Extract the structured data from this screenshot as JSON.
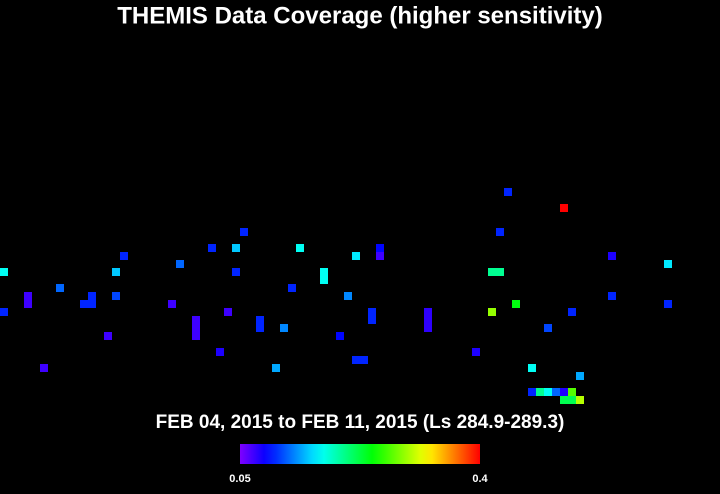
{
  "chart_data": {
    "type": "heatmap",
    "title": "THEMIS Data Coverage (higher sensitivity)",
    "subtitle": "FEB 04, 2015 to FEB 11, 2015 (Ls 284.9-289.3)",
    "x": [
      0,
      0,
      3,
      3,
      5,
      7,
      10,
      11,
      11,
      13,
      14,
      14,
      15,
      21,
      22,
      24,
      24,
      24,
      26,
      27,
      28,
      29,
      29,
      30,
      32,
      32,
      34,
      35,
      36,
      37,
      40,
      40,
      42,
      43,
      44,
      44,
      45,
      46,
      46,
      47,
      47,
      53,
      53,
      53,
      59,
      61,
      62,
      61,
      62,
      63,
      64,
      66,
      68,
      70,
      71,
      72,
      66,
      67,
      68,
      69,
      70,
      71,
      70,
      71,
      72,
      76,
      76,
      83,
      83
    ],
    "y": [
      34,
      39,
      37,
      38,
      46,
      36,
      38,
      37,
      38,
      42,
      34,
      37,
      32,
      38,
      33,
      40,
      41,
      42,
      31,
      44,
      39,
      31,
      34,
      29,
      40,
      41,
      46,
      41,
      36,
      31,
      34,
      35,
      42,
      37,
      32,
      45,
      45,
      39,
      40,
      31,
      32,
      39,
      40,
      41,
      44,
      34,
      34,
      39,
      29,
      24,
      38,
      46,
      41,
      26,
      39,
      47,
      49,
      49,
      49,
      49,
      49,
      49,
      50,
      50,
      50,
      32,
      37,
      33,
      38
    ],
    "values": [
      0.17,
      0.1,
      0.07,
      0.07,
      0.07,
      0.12,
      0.1,
      0.1,
      0.1,
      0.07,
      0.15,
      0.11,
      0.1,
      0.07,
      0.12,
      0.07,
      0.07,
      0.07,
      0.1,
      0.08,
      0.07,
      0.15,
      0.1,
      0.1,
      0.1,
      0.1,
      0.14,
      0.13,
      0.1,
      0.17,
      0.17,
      0.17,
      0.09,
      0.13,
      0.16,
      0.1,
      0.1,
      0.1,
      0.1,
      0.09,
      0.07,
      0.075,
      0.075,
      0.075,
      0.08,
      0.2,
      0.2,
      0.29,
      0.1,
      0.1,
      0.24,
      0.17,
      0.11,
      0.4,
      0.1,
      0.14,
      0.1,
      0.2,
      0.17,
      0.12,
      0.08,
      0.27,
      0.22,
      0.22,
      0.3,
      0.08,
      0.1,
      0.16,
      0.1
    ],
    "clim": [
      0.05,
      0.4
    ],
    "cticks": [
      0.05,
      0.4
    ]
  }
}
